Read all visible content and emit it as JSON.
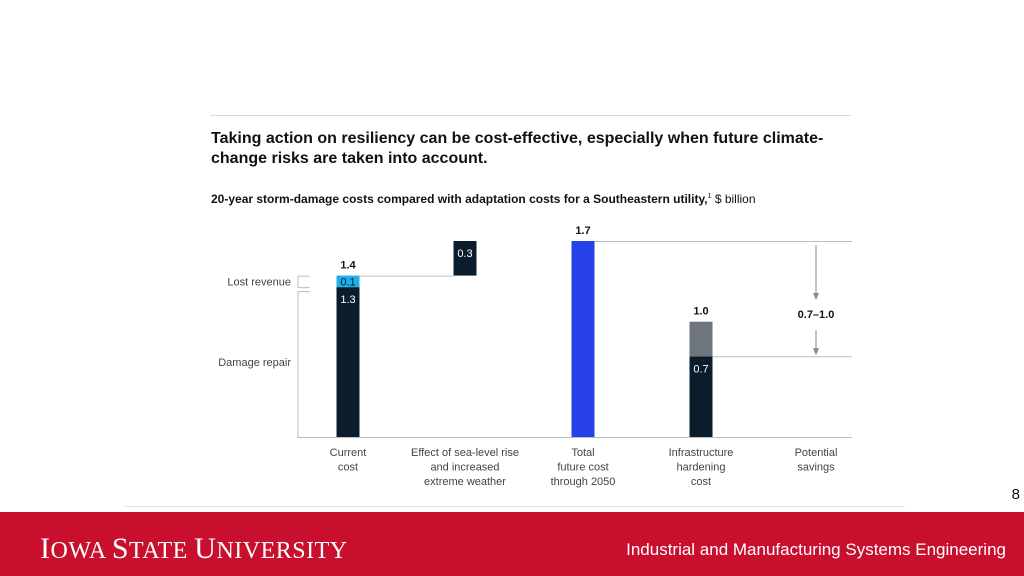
{
  "slide": {
    "title": "Taking action on resiliency can be cost-effective, especially when future climate-change risks are taken into account.",
    "subtitle_bold": "20-year storm-damage costs compared with adaptation costs for a Southeastern utility,",
    "subtitle_sup": "1",
    "subtitle_unit": " $ billion",
    "page_number": "8"
  },
  "footer": {
    "logo_parts": [
      "I",
      "OWA ",
      "S",
      "TATE ",
      "U",
      "NIVERSITY"
    ],
    "department": "Industrial and Manufacturing Systems Engineering"
  },
  "colors": {
    "dark": "#0b1c2c",
    "lost_revenue": "#1eaee8",
    "total": "#2642e8",
    "savings_gray": "#6e757c",
    "axis": "#bdbdbd",
    "footer_red": "#c8102e"
  },
  "chart_data": {
    "type": "bar",
    "subtype": "waterfall",
    "unit": "$ billion",
    "ylim": [
      0,
      1.7
    ],
    "categories": [
      "Current\ncost",
      "Effect of sea-level rise\nand increased\nextreme weather",
      "Total\nfuture cost\nthrough 2050",
      "Infrastructure\nhardening\ncost",
      "Potential\nsavings"
    ],
    "legend_labels": [
      "Lost revenue",
      "Damage repair"
    ],
    "bars": [
      {
        "category_index": 0,
        "segments": [
          {
            "label": "1.3",
            "base": 0,
            "value": 1.3,
            "color": "dark"
          },
          {
            "label": "0.1",
            "base": 1.3,
            "value": 0.1,
            "color": "lost_revenue"
          }
        ],
        "total_label": "1.4"
      },
      {
        "category_index": 1,
        "segments": [
          {
            "label": "0.3",
            "base": 1.4,
            "value": 0.3,
            "color": "dark"
          }
        ],
        "total_label": ""
      },
      {
        "category_index": 2,
        "segments": [
          {
            "label": "",
            "base": 0,
            "value": 1.7,
            "color": "total"
          }
        ],
        "total_label": "1.7"
      },
      {
        "category_index": 3,
        "segments": [
          {
            "label": "0.7",
            "base": 0,
            "value": 0.7,
            "color": "dark"
          },
          {
            "label": "",
            "base": 0.7,
            "value": 0.3,
            "color": "savings_gray"
          }
        ],
        "total_label": "1.0"
      }
    ],
    "savings": {
      "range_label": "0.7–1.0",
      "from": 1.7,
      "to": 0.7
    }
  }
}
